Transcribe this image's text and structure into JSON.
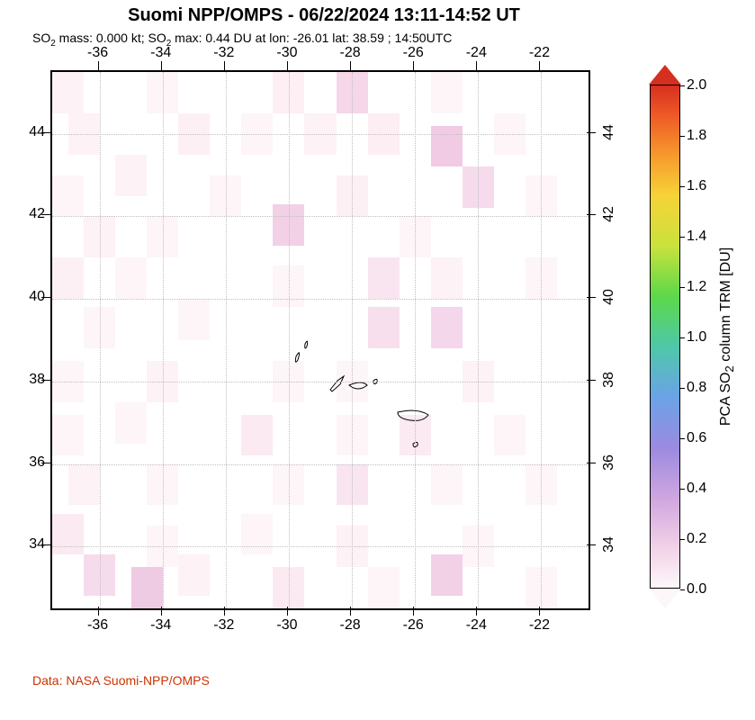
{
  "title": "Suomi NPP/OMPS - 06/22/2024 13:11-14:52 UT",
  "subtitle_html": "SO<sub>2</sub> mass: 0.000 kt; SO<sub>2</sub> max: 0.44 DU at lon: -26.01 lat: 38.59 ; 14:50UTC",
  "credit": "Data: NASA Suomi-NPP/OMPS",
  "map": {
    "x_min": -37.5,
    "x_max": -20.5,
    "y_min": 32.5,
    "y_max": 45.5,
    "x_ticks": [
      -36,
      -34,
      -32,
      -30,
      -28,
      -26,
      -24,
      -22
    ],
    "y_ticks": [
      34,
      36,
      38,
      40,
      42,
      44
    ],
    "grid_color": "#bfbfbf",
    "tick_font_size": 16,
    "cells": [
      {
        "lon": -37,
        "lat": 45,
        "w": 1,
        "h": 1,
        "c": "#fdf2f5"
      },
      {
        "lon": -34,
        "lat": 45,
        "w": 1,
        "h": 1,
        "c": "#fdf5f8"
      },
      {
        "lon": -30,
        "lat": 45,
        "w": 1,
        "h": 1,
        "c": "#fdeff4"
      },
      {
        "lon": -28,
        "lat": 45,
        "w": 1,
        "h": 1,
        "c": "#f6d7e9"
      },
      {
        "lon": -25,
        "lat": 45,
        "w": 1,
        "h": 1,
        "c": "#fdf5f8"
      },
      {
        "lon": -36.5,
        "lat": 44,
        "w": 1,
        "h": 1,
        "c": "#fdf2f5"
      },
      {
        "lon": -33,
        "lat": 44,
        "w": 1,
        "h": 1,
        "c": "#fdf0f5"
      },
      {
        "lon": -31,
        "lat": 44,
        "w": 1,
        "h": 1,
        "c": "#fdf5f8"
      },
      {
        "lon": -29,
        "lat": 44,
        "w": 1,
        "h": 1,
        "c": "#fdf2f6"
      },
      {
        "lon": -27,
        "lat": 44,
        "w": 1,
        "h": 1,
        "c": "#fdeef4"
      },
      {
        "lon": -25,
        "lat": 43.7,
        "w": 1,
        "h": 1,
        "c": "#f0cbe3"
      },
      {
        "lon": -23,
        "lat": 44,
        "w": 1,
        "h": 1,
        "c": "#fdf5f8"
      },
      {
        "lon": -37,
        "lat": 42.5,
        "w": 1,
        "h": 1,
        "c": "#fdf5f8"
      },
      {
        "lon": -35,
        "lat": 43,
        "w": 1,
        "h": 1,
        "c": "#fdf2f6"
      },
      {
        "lon": -32,
        "lat": 42.5,
        "w": 1,
        "h": 1,
        "c": "#fdf5f8"
      },
      {
        "lon": -28,
        "lat": 42.5,
        "w": 1,
        "h": 1,
        "c": "#fdf0f5"
      },
      {
        "lon": -24,
        "lat": 42.7,
        "w": 1,
        "h": 1,
        "c": "#f6dbed"
      },
      {
        "lon": -22,
        "lat": 42.5,
        "w": 1,
        "h": 1,
        "c": "#fdf5f8"
      },
      {
        "lon": -36,
        "lat": 41.5,
        "w": 1,
        "h": 1,
        "c": "#fdf2f6"
      },
      {
        "lon": -34,
        "lat": 41.5,
        "w": 1,
        "h": 1,
        "c": "#fdf5f8"
      },
      {
        "lon": -30,
        "lat": 41.8,
        "w": 1,
        "h": 1,
        "c": "#f2d1e7"
      },
      {
        "lon": -26,
        "lat": 41.5,
        "w": 1,
        "h": 1,
        "c": "#fdf5f8"
      },
      {
        "lon": -37,
        "lat": 40.5,
        "w": 1,
        "h": 1,
        "c": "#fdf0f5"
      },
      {
        "lon": -35,
        "lat": 40.5,
        "w": 1,
        "h": 1,
        "c": "#fdf5f8"
      },
      {
        "lon": -30,
        "lat": 40.3,
        "w": 1,
        "h": 1,
        "c": "#fdf5f8"
      },
      {
        "lon": -27,
        "lat": 40.5,
        "w": 1,
        "h": 1,
        "c": "#f9e5f0"
      },
      {
        "lon": -25,
        "lat": 40.5,
        "w": 1,
        "h": 1,
        "c": "#fdf2f6"
      },
      {
        "lon": -22,
        "lat": 40.5,
        "w": 1,
        "h": 1,
        "c": "#fdf5f8"
      },
      {
        "lon": -36,
        "lat": 39.3,
        "w": 1,
        "h": 1,
        "c": "#fdf5f8"
      },
      {
        "lon": -33,
        "lat": 39.5,
        "w": 1,
        "h": 1,
        "c": "#fdf5f8"
      },
      {
        "lon": -27,
        "lat": 39.3,
        "w": 1,
        "h": 1,
        "c": "#f7dfee"
      },
      {
        "lon": -25,
        "lat": 39.3,
        "w": 1,
        "h": 1,
        "c": "#f4d7ea"
      },
      {
        "lon": -37,
        "lat": 38,
        "w": 1,
        "h": 1,
        "c": "#fdf5f8"
      },
      {
        "lon": -34,
        "lat": 38,
        "w": 1,
        "h": 1,
        "c": "#fdf2f6"
      },
      {
        "lon": -30,
        "lat": 38,
        "w": 1,
        "h": 1,
        "c": "#fdf5f8"
      },
      {
        "lon": -28,
        "lat": 38,
        "w": 1,
        "h": 1,
        "c": "#fdf5f8"
      },
      {
        "lon": -24,
        "lat": 38,
        "w": 1,
        "h": 1,
        "c": "#fdf2f6"
      },
      {
        "lon": -37,
        "lat": 36.7,
        "w": 1,
        "h": 1,
        "c": "#fdf5f8"
      },
      {
        "lon": -35,
        "lat": 37,
        "w": 1,
        "h": 1,
        "c": "#fdf5f8"
      },
      {
        "lon": -31,
        "lat": 36.7,
        "w": 1,
        "h": 1,
        "c": "#fbeaf2"
      },
      {
        "lon": -28,
        "lat": 36.7,
        "w": 1,
        "h": 1,
        "c": "#fdf5f8"
      },
      {
        "lon": -26,
        "lat": 36.7,
        "w": 1,
        "h": 1,
        "c": "#fbeaf2"
      },
      {
        "lon": -23,
        "lat": 36.7,
        "w": 1,
        "h": 1,
        "c": "#fdf5f8"
      },
      {
        "lon": -36.5,
        "lat": 35.5,
        "w": 1,
        "h": 1,
        "c": "#fdf2f6"
      },
      {
        "lon": -34,
        "lat": 35.5,
        "w": 1,
        "h": 1,
        "c": "#fdf5f8"
      },
      {
        "lon": -30,
        "lat": 35.5,
        "w": 1,
        "h": 1,
        "c": "#fdf5f8"
      },
      {
        "lon": -28,
        "lat": 35.5,
        "w": 1,
        "h": 1,
        "c": "#f9e5f0"
      },
      {
        "lon": -25,
        "lat": 35.5,
        "w": 1,
        "h": 1,
        "c": "#fdf5f8"
      },
      {
        "lon": -22,
        "lat": 35.5,
        "w": 1,
        "h": 1,
        "c": "#fdf5f8"
      },
      {
        "lon": -37,
        "lat": 34.3,
        "w": 1,
        "h": 1,
        "c": "#fbeaf2"
      },
      {
        "lon": -34,
        "lat": 34,
        "w": 1,
        "h": 1,
        "c": "#fdf5f8"
      },
      {
        "lon": -31,
        "lat": 34.3,
        "w": 1,
        "h": 1,
        "c": "#fdf5f8"
      },
      {
        "lon": -28,
        "lat": 34,
        "w": 1,
        "h": 1,
        "c": "#fdf2f6"
      },
      {
        "lon": -24,
        "lat": 34,
        "w": 1,
        "h": 1,
        "c": "#fdf5f8"
      },
      {
        "lon": -36,
        "lat": 33.3,
        "w": 1,
        "h": 1,
        "c": "#f6dbed"
      },
      {
        "lon": -34.5,
        "lat": 33,
        "w": 1,
        "h": 1,
        "c": "#efcae3"
      },
      {
        "lon": -33,
        "lat": 33.3,
        "w": 1,
        "h": 1,
        "c": "#fdf2f6"
      },
      {
        "lon": -30,
        "lat": 33,
        "w": 1,
        "h": 1,
        "c": "#fbeaf2"
      },
      {
        "lon": -27,
        "lat": 33,
        "w": 1,
        "h": 1,
        "c": "#fdf5f8"
      },
      {
        "lon": -25,
        "lat": 33.3,
        "w": 1,
        "h": 1,
        "c": "#f2d1e7"
      },
      {
        "lon": -22,
        "lat": 33,
        "w": 1,
        "h": 1,
        "c": "#fdf5f8"
      }
    ],
    "coast_paths": [
      "M271,316 q6,-10 2,4 q-4,6 -2,-4 z",
      "M281,302 q4,-7 2,3 q-3,5 -2,-3 z",
      "M309,353 l8,-10 l7,-5 l-4,9 l-9,8 z",
      "M330,348 q14,-6 20,0 q-10,8 -20,0 z",
      "M357,343 q5,-4 4,2 q-4,4 -4,-2 z",
      "M384,378 q22,-5 34,3 q-6,8 -20,6 q-14,-2 -14,-9 z",
      "M401,413 q6,-4 5,2 q-5,4 -5,-2 z"
    ]
  },
  "colorbar": {
    "title_html": "PCA SO<sub>2</sub> column TRM [DU]",
    "min": 0.0,
    "max": 2.0,
    "ticks": [
      0.0,
      0.2,
      0.4,
      0.6,
      0.8,
      1.0,
      1.2,
      1.4,
      1.6,
      1.8,
      2.0
    ],
    "stops": [
      {
        "p": 0,
        "c": "#fdf7fa"
      },
      {
        "p": 8,
        "c": "#f2d1e7"
      },
      {
        "p": 18,
        "c": "#cfa5e0"
      },
      {
        "p": 28,
        "c": "#9a8ae0"
      },
      {
        "p": 38,
        "c": "#6aa3e6"
      },
      {
        "p": 48,
        "c": "#4ec8a8"
      },
      {
        "p": 58,
        "c": "#5cd84a"
      },
      {
        "p": 68,
        "c": "#c9e23c"
      },
      {
        "p": 78,
        "c": "#f7d337"
      },
      {
        "p": 86,
        "c": "#f79a2d"
      },
      {
        "p": 94,
        "c": "#ef5a26"
      },
      {
        "p": 100,
        "c": "#d62f1f"
      }
    ],
    "arrow_top_color": "#d62f1f",
    "arrow_bottom_color": "#fdf7fa"
  }
}
